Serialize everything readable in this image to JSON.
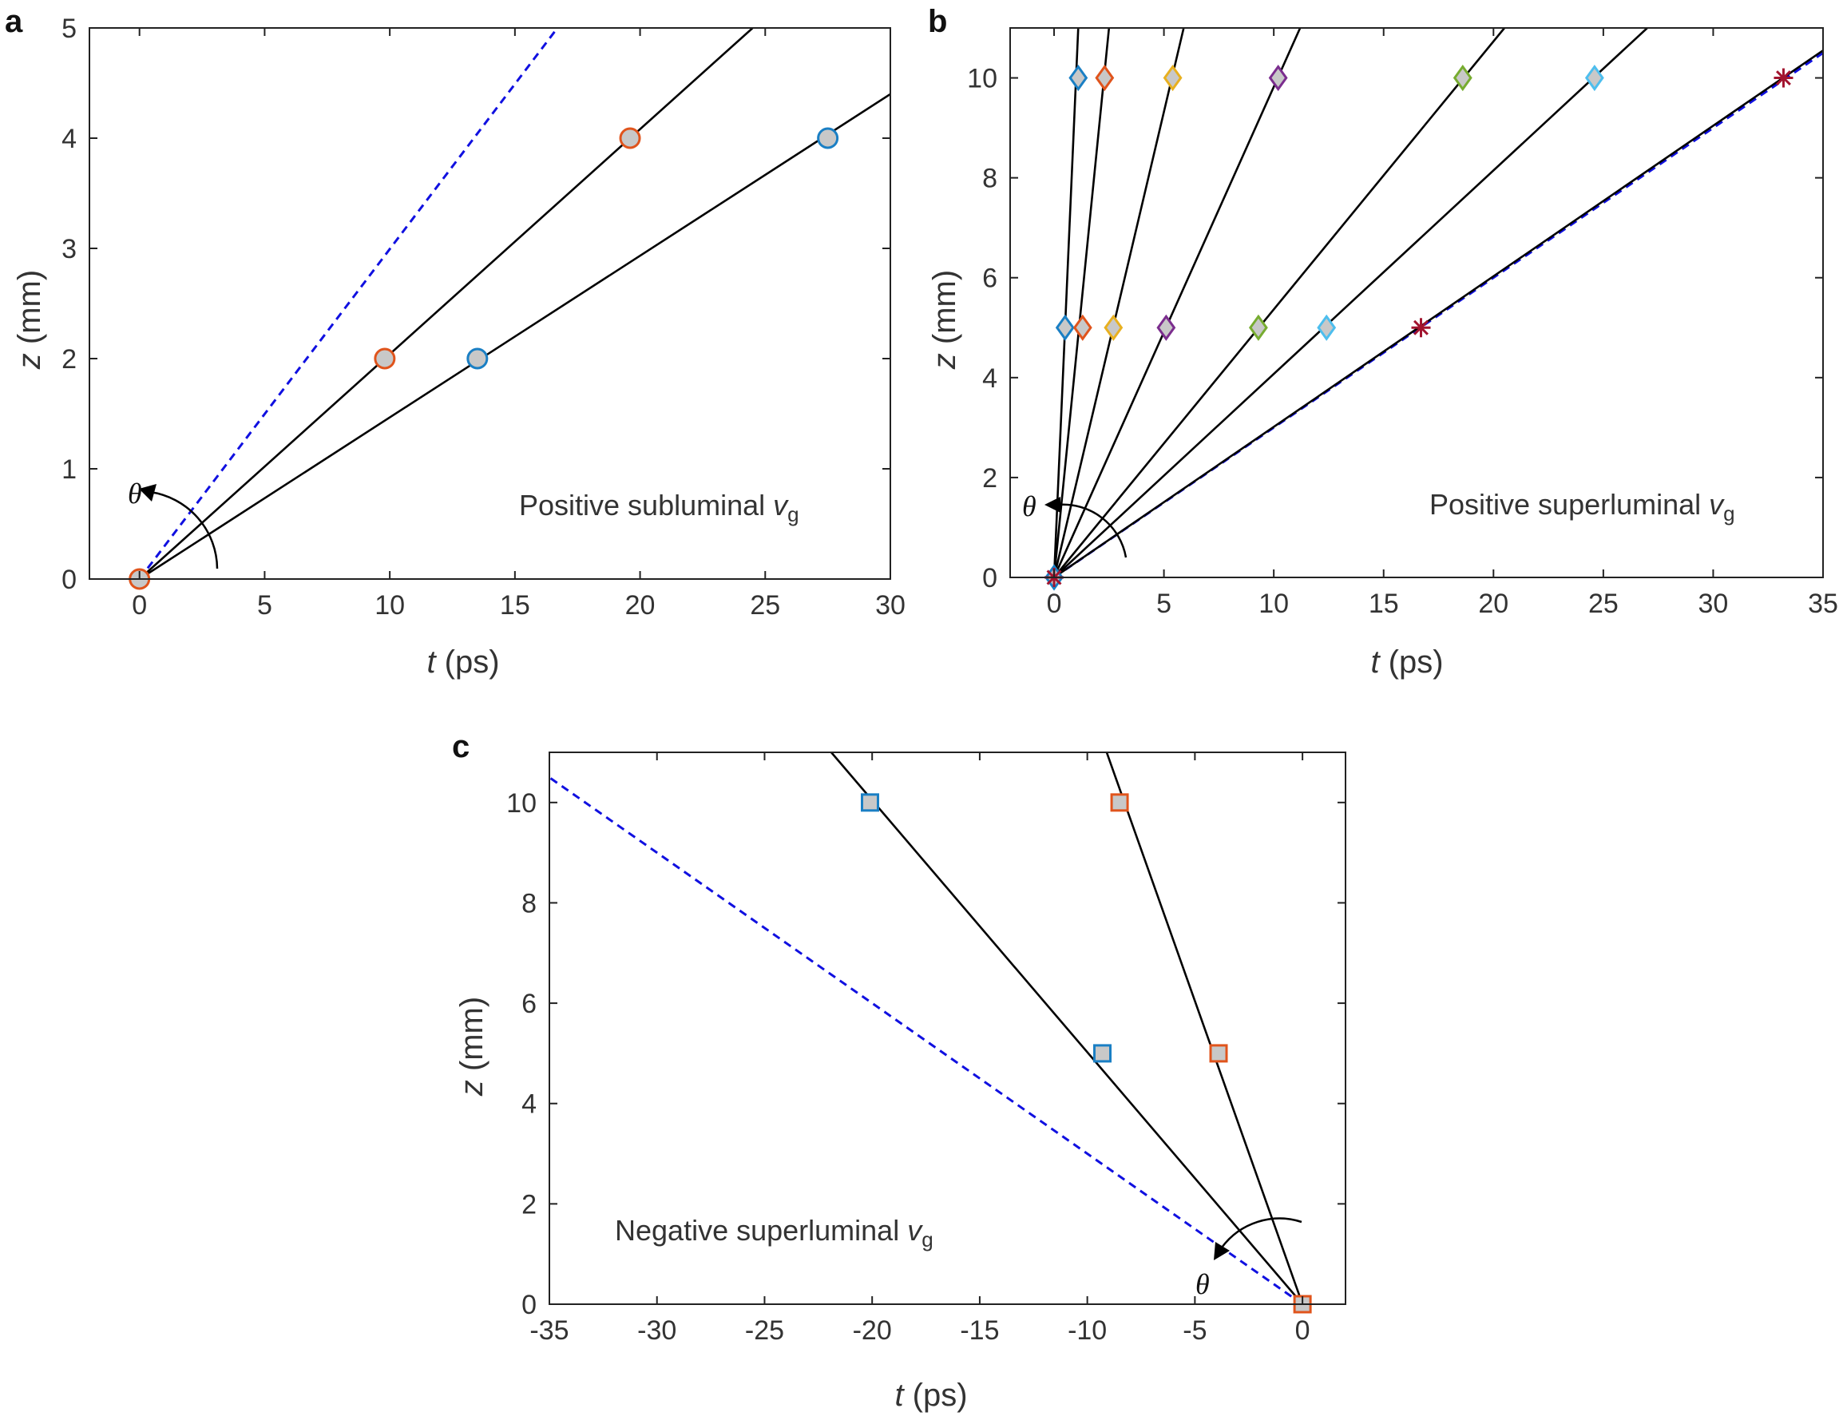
{
  "chart_data": [
    {
      "panel": "a",
      "type": "line",
      "annotation": {
        "text": "Positive subluminal ",
        "var": "v",
        "sub": "g"
      },
      "theta_label": "θ",
      "xlabel": {
        "var": "t",
        "unit": " (ps)"
      },
      "ylabel": {
        "var": "z",
        "unit": " (mm)"
      },
      "xlim": [
        -2,
        30
      ],
      "ylim": [
        0,
        5
      ],
      "xticks": [
        0,
        5,
        10,
        15,
        20,
        25,
        30
      ],
      "yticks": [
        0,
        1,
        2,
        3,
        4,
        5
      ],
      "dashed_line": {
        "color": "#1010e0",
        "points": [
          [
            0,
            0
          ],
          [
            16.7,
            5
          ]
        ]
      },
      "series": [
        {
          "name": "line-1",
          "line_color": "#000000",
          "points": [
            [
              0,
              0
            ],
            [
              24.5,
              5
            ]
          ]
        },
        {
          "name": "line-2",
          "line_color": "#000000",
          "points": [
            [
              0,
              0
            ],
            [
              30,
              4.4
            ]
          ]
        }
      ],
      "markers": [
        {
          "shape": "circle",
          "x": 0,
          "y": 0,
          "edge": "#e0541c"
        },
        {
          "shape": "circle",
          "x": 9.8,
          "y": 2,
          "edge": "#e0541c"
        },
        {
          "shape": "circle",
          "x": 19.6,
          "y": 4,
          "edge": "#e0541c"
        },
        {
          "shape": "circle",
          "x": 13.5,
          "y": 2,
          "edge": "#1a7fc4"
        },
        {
          "shape": "circle",
          "x": 27.5,
          "y": 4,
          "edge": "#1a7fc4"
        }
      ]
    },
    {
      "panel": "b",
      "type": "line",
      "annotation": {
        "text": "Positive superluminal ",
        "var": "v",
        "sub": "g"
      },
      "theta_label": "θ",
      "xlabel": {
        "var": "t",
        "unit": " (ps)"
      },
      "ylabel": {
        "var": "z",
        "unit": " (mm)"
      },
      "xlim": [
        -2,
        35
      ],
      "ylim": [
        0,
        11
      ],
      "xticks": [
        0,
        5,
        10,
        15,
        20,
        25,
        30,
        35
      ],
      "yticks": [
        0,
        2,
        4,
        6,
        8,
        10
      ],
      "dashed_line": {
        "color": "#1010e0",
        "points": [
          [
            0,
            0
          ],
          [
            35,
            10.5
          ]
        ]
      },
      "series": [
        {
          "name": "line-1",
          "line_color": "#000000",
          "points": [
            [
              0,
              0
            ],
            [
              1.1,
              11
            ]
          ]
        },
        {
          "name": "line-2",
          "line_color": "#000000",
          "points": [
            [
              0,
              0
            ],
            [
              2.5,
              11
            ]
          ]
        },
        {
          "name": "line-3",
          "line_color": "#000000",
          "points": [
            [
              0,
              0
            ],
            [
              5.9,
              11
            ]
          ]
        },
        {
          "name": "line-4",
          "line_color": "#000000",
          "points": [
            [
              0,
              0
            ],
            [
              11.2,
              11
            ]
          ]
        },
        {
          "name": "line-5",
          "line_color": "#000000",
          "points": [
            [
              0,
              0
            ],
            [
              20.5,
              11
            ]
          ]
        },
        {
          "name": "line-6",
          "line_color": "#000000",
          "points": [
            [
              0,
              0
            ],
            [
              27,
              11
            ]
          ]
        },
        {
          "name": "line-7",
          "line_color": "#000000",
          "points": [
            [
              0,
              0
            ],
            [
              35,
              10.55
            ]
          ]
        }
      ],
      "markers": [
        {
          "shape": "diamond",
          "x": 0,
          "y": 0,
          "edge": "#1a7fc4"
        },
        {
          "shape": "diamond",
          "x": 0.5,
          "y": 5,
          "edge": "#1a7fc4"
        },
        {
          "shape": "diamond",
          "x": 1.1,
          "y": 10,
          "edge": "#1a7fc4"
        },
        {
          "shape": "diamond",
          "x": 1.3,
          "y": 5,
          "edge": "#e0541c"
        },
        {
          "shape": "diamond",
          "x": 2.3,
          "y": 10,
          "edge": "#e0541c"
        },
        {
          "shape": "diamond",
          "x": 2.7,
          "y": 5,
          "edge": "#e8b020"
        },
        {
          "shape": "diamond",
          "x": 5.4,
          "y": 10,
          "edge": "#e8b020"
        },
        {
          "shape": "diamond",
          "x": 5.1,
          "y": 5,
          "edge": "#7b2d8e"
        },
        {
          "shape": "diamond",
          "x": 10.2,
          "y": 10,
          "edge": "#7b2d8e"
        },
        {
          "shape": "diamond",
          "x": 9.3,
          "y": 5,
          "edge": "#77ac30"
        },
        {
          "shape": "diamond",
          "x": 18.6,
          "y": 10,
          "edge": "#77ac30"
        },
        {
          "shape": "diamond",
          "x": 12.4,
          "y": 5,
          "edge": "#4dbeee"
        },
        {
          "shape": "diamond",
          "x": 24.6,
          "y": 10,
          "edge": "#4dbeee"
        },
        {
          "shape": "star",
          "x": 0,
          "y": 0,
          "edge": "#a2142f"
        },
        {
          "shape": "star",
          "x": 16.7,
          "y": 5,
          "edge": "#a2142f"
        },
        {
          "shape": "star",
          "x": 33.2,
          "y": 10,
          "edge": "#a2142f"
        }
      ]
    },
    {
      "panel": "c",
      "type": "line",
      "annotation": {
        "text": "Negative superluminal ",
        "var": "v",
        "sub": "g"
      },
      "theta_label": "θ",
      "xlabel": {
        "var": "t",
        "unit": " (ps)"
      },
      "ylabel": {
        "var": "z",
        "unit": " (mm)"
      },
      "xlim": [
        -35,
        2
      ],
      "ylim": [
        0,
        11
      ],
      "xticks": [
        -35,
        -30,
        -25,
        -20,
        -15,
        -10,
        -5,
        0
      ],
      "yticks": [
        0,
        2,
        4,
        6,
        8,
        10
      ],
      "dashed_line": {
        "color": "#1010e0",
        "points": [
          [
            0,
            0
          ],
          [
            -35,
            10.5
          ]
        ]
      },
      "series": [
        {
          "name": "line-1",
          "line_color": "#000000",
          "points": [
            [
              0,
              0
            ],
            [
              -21.9,
              11
            ]
          ]
        },
        {
          "name": "line-2",
          "line_color": "#000000",
          "points": [
            [
              0,
              0
            ],
            [
              -9.1,
              11
            ]
          ]
        }
      ],
      "markers": [
        {
          "shape": "square",
          "x": 0,
          "y": 0,
          "edge": "#e0541c"
        },
        {
          "shape": "square",
          "x": -9.3,
          "y": 5,
          "edge": "#1a7fc4"
        },
        {
          "shape": "square",
          "x": -20.1,
          "y": 10,
          "edge": "#1a7fc4"
        },
        {
          "shape": "square",
          "x": -3.9,
          "y": 5,
          "edge": "#e0541c"
        },
        {
          "shape": "square",
          "x": -8.5,
          "y": 10,
          "edge": "#e0541c"
        }
      ]
    }
  ]
}
